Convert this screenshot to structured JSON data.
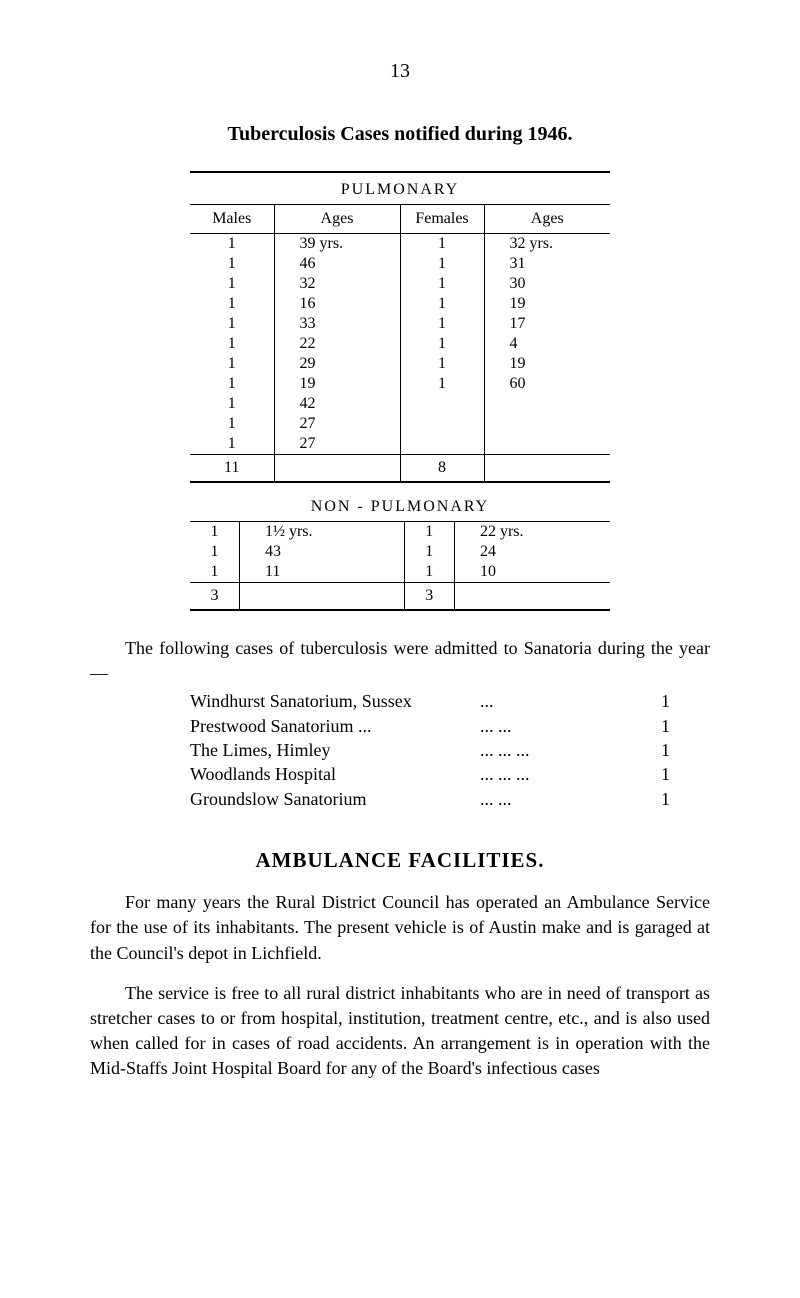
{
  "page_number": "13",
  "title": "Tuberculosis Cases notified during 1946.",
  "table1": {
    "label": "PULMONARY",
    "headers": {
      "males": "Males",
      "ages1": "Ages",
      "females": "Females",
      "ages2": "Ages"
    },
    "rows": [
      {
        "males": "1",
        "ages1": "39 yrs.",
        "females": "1",
        "ages2": "32 yrs."
      },
      {
        "males": "1",
        "ages1": "46",
        "females": "1",
        "ages2": "31"
      },
      {
        "males": "1",
        "ages1": "32",
        "females": "1",
        "ages2": "30"
      },
      {
        "males": "1",
        "ages1": "16",
        "females": "1",
        "ages2": "19"
      },
      {
        "males": "1",
        "ages1": "33",
        "females": "1",
        "ages2": "17"
      },
      {
        "males": "1",
        "ages1": "22",
        "females": "1",
        "ages2": "4"
      },
      {
        "males": "1",
        "ages1": "29",
        "females": "1",
        "ages2": "19"
      },
      {
        "males": "1",
        "ages1": "19",
        "females": "1",
        "ages2": "60"
      },
      {
        "males": "1",
        "ages1": "42",
        "females": "",
        "ages2": ""
      },
      {
        "males": "1",
        "ages1": "27",
        "females": "",
        "ages2": ""
      },
      {
        "males": "1",
        "ages1": "27",
        "females": "",
        "ages2": ""
      }
    ],
    "totals": {
      "males": "11",
      "females": "8"
    }
  },
  "table2": {
    "label": "NON - PULMONARY",
    "rows": [
      {
        "males": "1",
        "ages1": "1½ yrs.",
        "females": "1",
        "ages2": "22 yrs."
      },
      {
        "males": "1",
        "ages1": "43",
        "females": "1",
        "ages2": "24"
      },
      {
        "males": "1",
        "ages1": "11",
        "females": "1",
        "ages2": "10"
      }
    ],
    "totals": {
      "males": "3",
      "females": "3"
    }
  },
  "intro_paragraph": "The following cases of tuberculosis were admitted to Sanatoria during the year —",
  "sanatoriums": [
    {
      "name": "Windhurst Sanatorium, Sussex",
      "dots": "...",
      "count": "1"
    },
    {
      "name": "Prestwood Sanatorium ...",
      "dots": "...   ...",
      "count": "1"
    },
    {
      "name": "The Limes, Himley",
      "dots": "...   ...   ...",
      "count": "1"
    },
    {
      "name": "Woodlands Hospital",
      "dots": "...   ...   ...",
      "count": "1"
    },
    {
      "name": "Groundslow Sanatorium",
      "dots": "...   ...",
      "count": "1"
    }
  ],
  "section_title": "AMBULANCE FACILITIES.",
  "paragraph1": "For many years the Rural District Council has operated an Ambulance Service for the use of its inhabitants. The present vehicle is of Austin make and is garaged at the Council's depot in Lichfield.",
  "paragraph2": "The service is free to all rural district inhabitants who are in need of transport as stretcher cases to or from hospital, institution, treatment centre, etc., and is also used when called for in cases of road accidents. An arrangement is in operation with the Mid-Staffs Joint Hospital Board for any of the Board's infectious cases",
  "colors": {
    "background": "#ffffff",
    "text": "#000000"
  },
  "typography": {
    "body_fontsize": 18,
    "title_fontsize": 20,
    "table_fontsize": 16,
    "section_title_fontsize": 21
  }
}
